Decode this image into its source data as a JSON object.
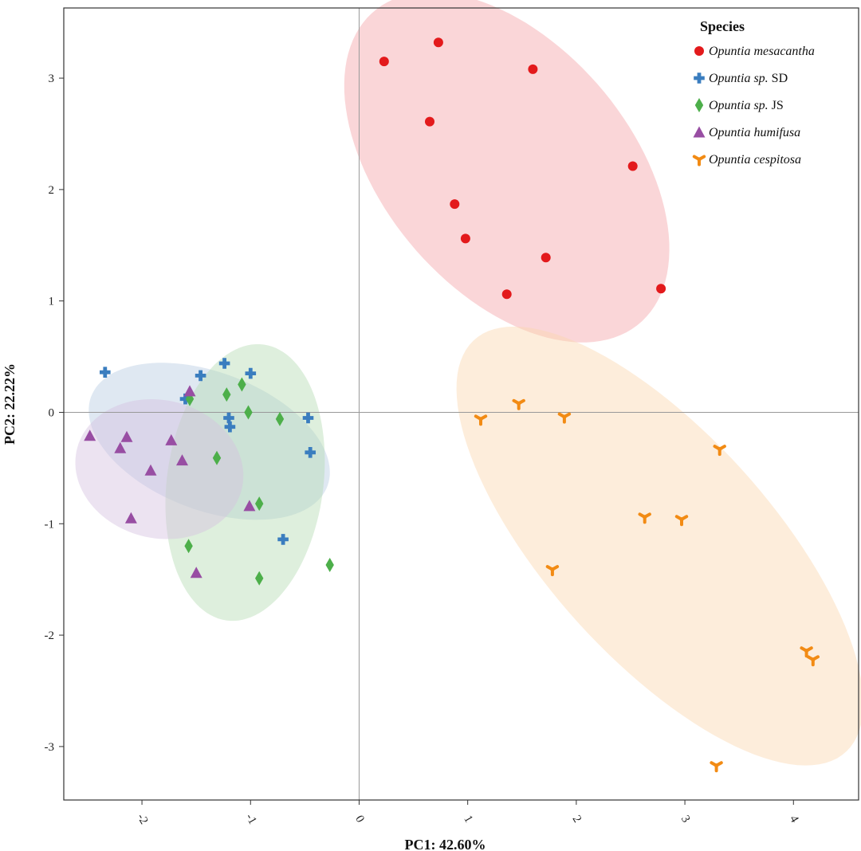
{
  "chart_data": {
    "type": "scatter",
    "xlabel": "PC1: 42.60%",
    "ylabel": "PC2: 22.22%",
    "xlim": [
      -2.72,
      4.6
    ],
    "ylim": [
      -3.48,
      3.63
    ],
    "x_ticks": [
      -2,
      -1,
      0,
      1,
      2,
      3,
      4
    ],
    "y_ticks": [
      3,
      2,
      1,
      0,
      -1,
      -2,
      -3
    ],
    "x_tick_labels": [
      "-2",
      "-1",
      "0",
      "1",
      "2",
      "3",
      "4"
    ],
    "y_tick_labels": [
      "3",
      "2",
      "1",
      "0",
      "-1",
      "-2",
      "-3"
    ],
    "reference_lines": {
      "x": 0,
      "y": 0
    },
    "grid": false,
    "legend": {
      "title": "Species",
      "placement": "top-right",
      "entries": [
        {
          "italic": "Opuntia mesacantha",
          "suffix": ""
        },
        {
          "italic": "Opuntia sp.",
          "suffix": " SD"
        },
        {
          "italic": "Opuntia sp.",
          "suffix": " JS"
        },
        {
          "italic": "Opuntia humifusa",
          "suffix": ""
        },
        {
          "italic": "Opuntia cespitosa",
          "suffix": ""
        }
      ]
    },
    "series": [
      {
        "name": "Opuntia mesacantha",
        "marker": "circle",
        "color": "#e31a1c",
        "ellipse_color": "#f4a3a8",
        "ellipse": {
          "cx": 1.36,
          "cy": 2.2,
          "rx": 1.86,
          "ry": 1.12,
          "angle_deg": -48
        },
        "points": [
          [
            0.23,
            3.15
          ],
          [
            0.73,
            3.32
          ],
          [
            1.6,
            3.08
          ],
          [
            0.65,
            2.61
          ],
          [
            2.52,
            2.21
          ],
          [
            0.88,
            1.87
          ],
          [
            0.98,
            1.56
          ],
          [
            1.72,
            1.39
          ],
          [
            1.36,
            1.06
          ],
          [
            2.78,
            1.11
          ]
        ]
      },
      {
        "name": "Opuntia sp. SD",
        "marker": "plus",
        "color": "#3a7dbf",
        "ellipse_color": "#b9cde3",
        "ellipse": {
          "cx": -1.38,
          "cy": -0.26,
          "rx": 1.16,
          "ry": 0.62,
          "angle_deg": -20
        },
        "points": [
          [
            -2.34,
            0.36
          ],
          [
            -1.24,
            0.44
          ],
          [
            -1.46,
            0.33
          ],
          [
            -1.0,
            0.35
          ],
          [
            -1.6,
            0.12
          ],
          [
            -1.2,
            -0.05
          ],
          [
            -1.19,
            -0.13
          ],
          [
            -0.47,
            -0.05
          ],
          [
            -0.45,
            -0.36
          ],
          [
            -0.7,
            -1.14
          ]
        ]
      },
      {
        "name": "Opuntia sp. JS",
        "marker": "diamond",
        "color": "#4daf4a",
        "ellipse_color": "#b6dcb3",
        "ellipse": {
          "cx": -1.05,
          "cy": -0.63,
          "rx": 0.72,
          "ry": 1.25,
          "angle_deg": -8
        },
        "points": [
          [
            -1.08,
            0.25
          ],
          [
            -1.22,
            0.16
          ],
          [
            -1.56,
            0.12
          ],
          [
            -1.02,
            0.0
          ],
          [
            -0.73,
            -0.06
          ],
          [
            -1.31,
            -0.41
          ],
          [
            -0.92,
            -0.82
          ],
          [
            -1.57,
            -1.2
          ],
          [
            -0.92,
            -1.49
          ],
          [
            -0.27,
            -1.37
          ]
        ]
      },
      {
        "name": "Opuntia humifusa",
        "marker": "triangle",
        "color": "#984ea3",
        "ellipse_color": "#d5c1df",
        "ellipse": {
          "cx": -1.84,
          "cy": -0.51,
          "rx": 0.78,
          "ry": 0.62,
          "angle_deg": -12
        },
        "points": [
          [
            -1.56,
            0.19
          ],
          [
            -2.48,
            -0.21
          ],
          [
            -2.14,
            -0.22
          ],
          [
            -1.73,
            -0.25
          ],
          [
            -2.2,
            -0.32
          ],
          [
            -1.63,
            -0.43
          ],
          [
            -1.92,
            -0.52
          ],
          [
            -1.01,
            -0.84
          ],
          [
            -2.1,
            -0.95
          ],
          [
            -1.5,
            -1.44
          ]
        ]
      },
      {
        "name": "Opuntia cespitosa",
        "marker": "tri-arm",
        "color": "#f28b14",
        "ellipse_color": "#fbd8b0",
        "ellipse": {
          "cx": 2.77,
          "cy": -1.2,
          "rx": 2.52,
          "ry": 1.02,
          "angle_deg": -47
        },
        "points": [
          [
            1.12,
            -0.06
          ],
          [
            1.47,
            0.08
          ],
          [
            1.89,
            -0.04
          ],
          [
            3.32,
            -0.33
          ],
          [
            2.63,
            -0.94
          ],
          [
            2.97,
            -0.96
          ],
          [
            1.78,
            -1.41
          ],
          [
            4.12,
            -2.14
          ],
          [
            4.18,
            -2.22
          ],
          [
            3.29,
            -3.17
          ]
        ]
      }
    ]
  }
}
